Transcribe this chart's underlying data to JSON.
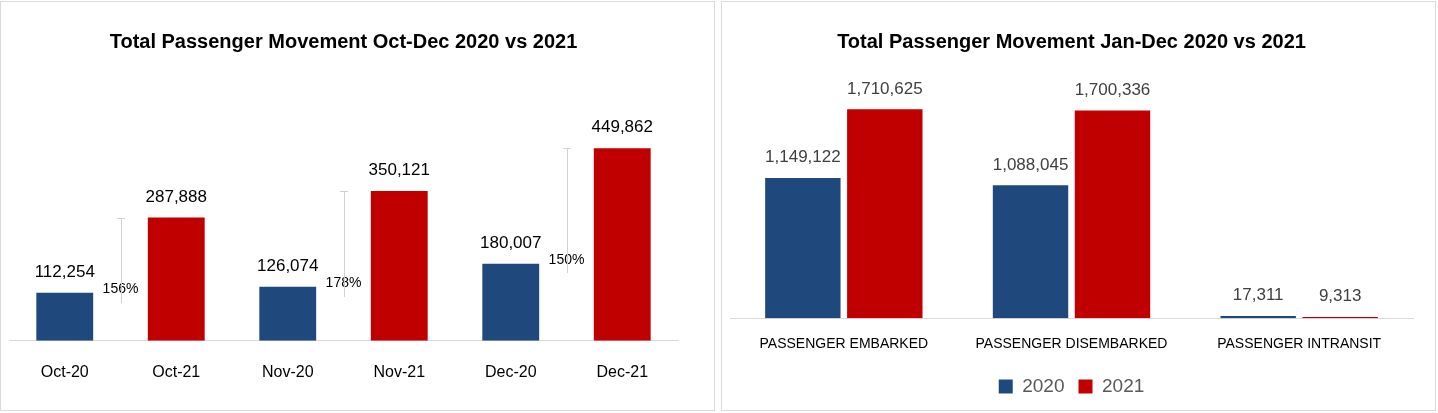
{
  "chart_data": [
    {
      "type": "bar",
      "title": "Total Passenger Movement Oct-Dec 2020 vs 2021",
      "categories": [
        "Oct-20",
        "Oct-21",
        "Nov-20",
        "Nov-21",
        "Dec-20",
        "Dec-21"
      ],
      "values": [
        112254,
        287888,
        126074,
        350121,
        180007,
        449862
      ],
      "value_labels": [
        "112,254",
        "287,888",
        "126,074",
        "350,121",
        "180,007",
        "449,862"
      ],
      "colors": [
        "#1f497d",
        "#c00000",
        "#1f497d",
        "#c00000",
        "#1f497d",
        "#c00000"
      ],
      "annotations": [
        "156%",
        "178%",
        "150%"
      ]
    },
    {
      "type": "bar",
      "title": "Total Passenger Movement Jan-Dec 2020 vs 2021",
      "categories": [
        "PASSENGER EMBARKED",
        "PASSENGER DISEMBARKED",
        "PASSENGER INTRANSIT"
      ],
      "series": [
        {
          "name": "2020",
          "color": "#1f497d",
          "values": [
            1149122,
            1088045,
            17311
          ],
          "value_labels": [
            "1,149,122",
            "1,088,045",
            "17,311"
          ]
        },
        {
          "name": "2021",
          "color": "#c00000",
          "values": [
            1710625,
            1700336,
            9313
          ],
          "value_labels": [
            "1,710,625",
            "1,700,336",
            "9,313"
          ]
        }
      ],
      "legend": "bottom"
    }
  ]
}
